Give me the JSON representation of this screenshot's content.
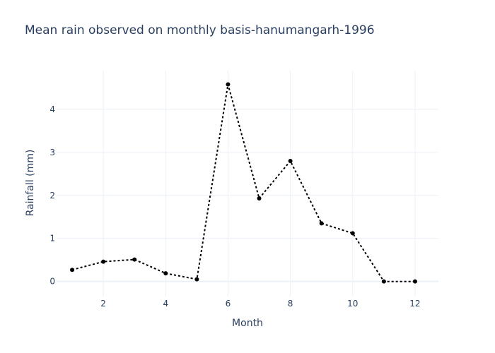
{
  "chart_data": {
    "type": "line",
    "title": "Mean rain observed on monthly basis-hanumangarh-1996",
    "xlabel": "Month",
    "ylabel": "Rainfall (mm)",
    "xlim": [
      0.5,
      12.75
    ],
    "ylim": [
      -0.35,
      4.9
    ],
    "x_ticks": [
      2,
      4,
      6,
      8,
      10,
      12
    ],
    "y_ticks": [
      0,
      1,
      2,
      3,
      4
    ],
    "grid": true,
    "series": [
      {
        "name": "Rainfall",
        "line_style": "dotted",
        "color": "#000000",
        "x": [
          1,
          2,
          3,
          4,
          5,
          6,
          7,
          8,
          9,
          10,
          11,
          12
        ],
        "values": [
          0.27,
          0.46,
          0.51,
          0.19,
          0.05,
          4.58,
          1.93,
          2.8,
          1.35,
          1.12,
          0.0,
          0.0
        ]
      }
    ]
  }
}
